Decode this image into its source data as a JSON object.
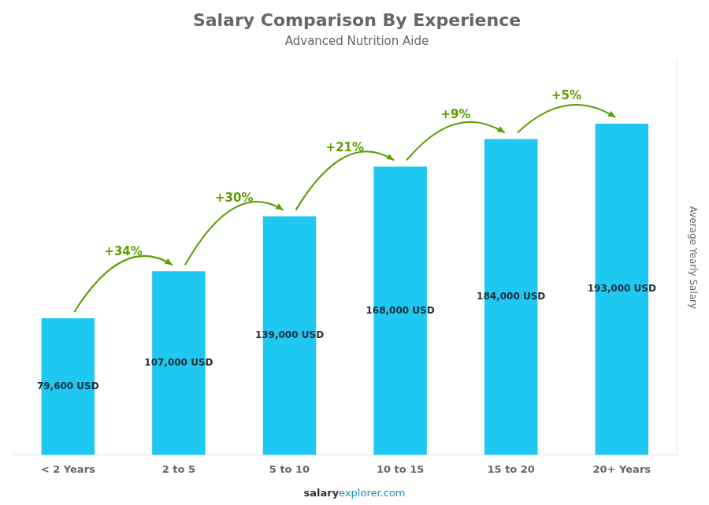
{
  "chart_data": {
    "type": "bar",
    "title": "Salary Comparison By Experience",
    "subtitle": "Advanced Nutrition Aide",
    "y_label": "Average Yearly Salary",
    "categories": [
      "< 2 Years",
      "2 to 5",
      "5 to 10",
      "10 to 15",
      "15 to 20",
      "20+ Years"
    ],
    "values": [
      79600,
      107000,
      139000,
      168000,
      184000,
      193000
    ],
    "value_labels": [
      "79,600 USD",
      "107,000 USD",
      "139,000 USD",
      "168,000 USD",
      "184,000 USD",
      "193,000 USD"
    ],
    "data_labels": true,
    "annotations": [
      "+34%",
      "+30%",
      "+21%",
      "+9%",
      "+5%"
    ],
    "footer": [
      "salary",
      "explorer.com"
    ],
    "color": "#1ec8f0",
    "ylim": [
      0,
      230000
    ],
    "tick_labels": "x",
    "grid": false,
    "legend": false
  }
}
